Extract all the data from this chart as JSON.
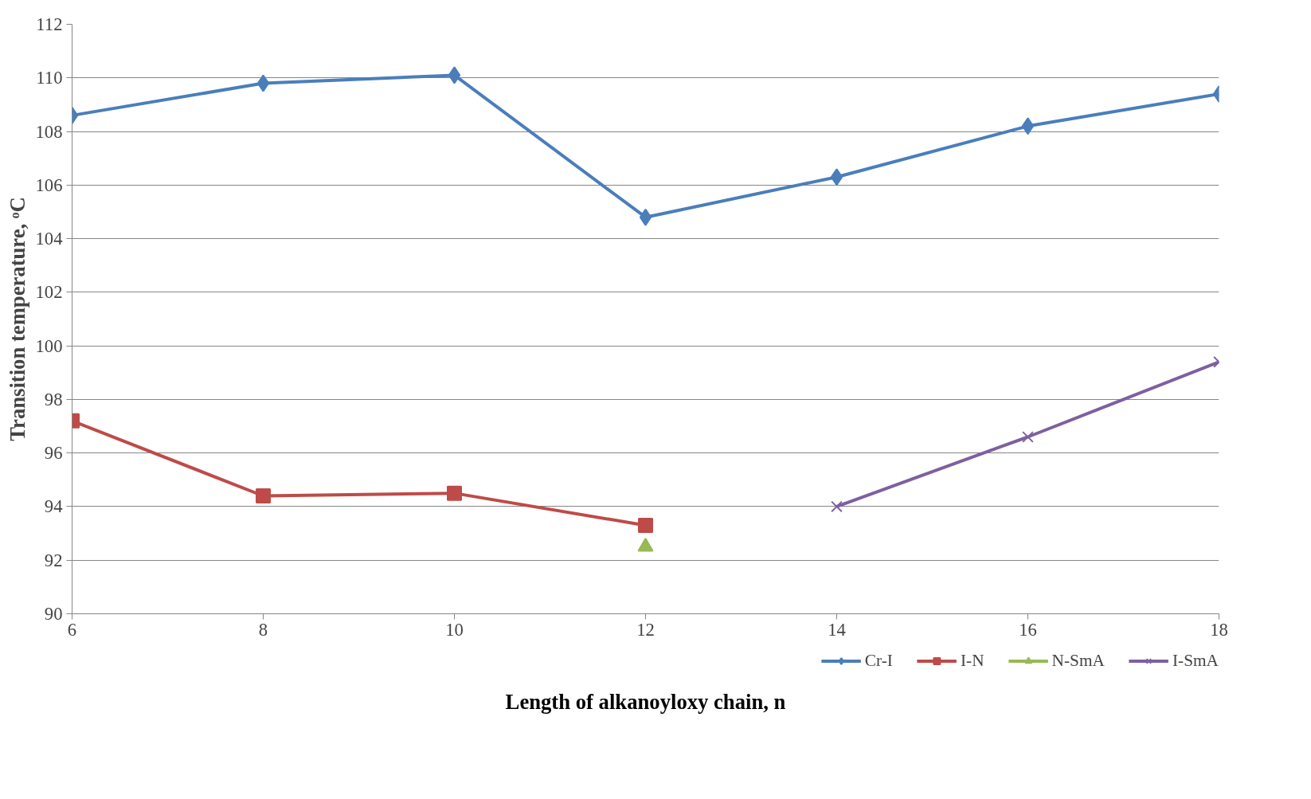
{
  "chart_data": {
    "type": "line",
    "xlabel": "Length of alkanoyloxy chain, n",
    "ylabel": "Transition temperature, ᵒC",
    "x": [
      6,
      8,
      10,
      12,
      14,
      16,
      18
    ],
    "series": [
      {
        "name": "Cr-I",
        "color": "#4a7ebb",
        "marker": "diamond",
        "values": [
          108.6,
          109.8,
          110.1,
          104.8,
          106.3,
          108.2,
          109.4
        ]
      },
      {
        "name": "I-N",
        "color": "#be4b48",
        "marker": "square",
        "values": [
          97.2,
          94.4,
          94.5,
          93.3,
          null,
          null,
          null
        ]
      },
      {
        "name": "N-SmA",
        "color": "#98b954",
        "marker": "triangle",
        "values": [
          null,
          null,
          null,
          92.5,
          null,
          null,
          null
        ]
      },
      {
        "name": "I-SmA",
        "color": "#7d60a0",
        "marker": "cross",
        "values": [
          null,
          null,
          null,
          null,
          94.0,
          96.6,
          99.4
        ]
      }
    ],
    "xlim": [
      6,
      18
    ],
    "xticks": [
      6,
      8,
      10,
      12,
      14,
      16,
      18
    ],
    "ylim": [
      90,
      112
    ],
    "yticks": [
      90,
      92,
      94,
      96,
      98,
      100,
      102,
      104,
      106,
      108,
      110,
      112
    ],
    "grid": "y",
    "legend": "bottom",
    "line_style": "solid"
  }
}
